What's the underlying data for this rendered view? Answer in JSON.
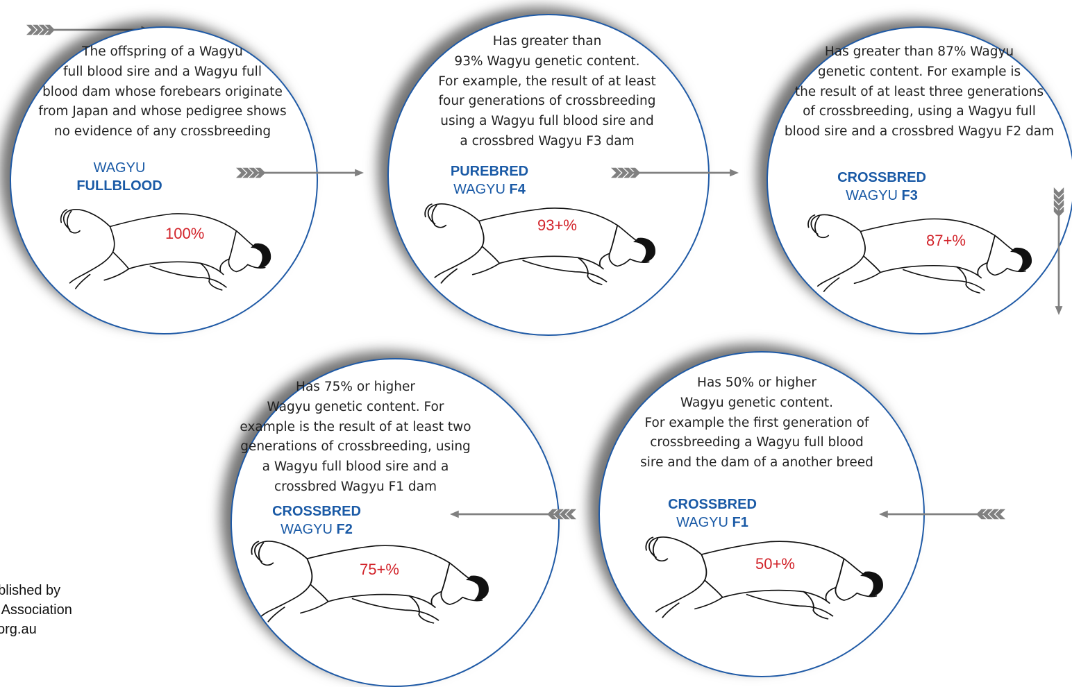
{
  "stages": [
    {
      "id": "fullblood",
      "description": [
        "The offspring of a  Wagyu",
        "full blood sire and a Wagyu full",
        "blood dam whose forebears originate",
        "from Japan and whose pedigree shows",
        "no evidence of any crossbreeding"
      ],
      "label_line1": "WAGYU",
      "label_line2_prefix": "",
      "label_line2_bold": "FULLBLOOD",
      "percent": "100%"
    },
    {
      "id": "purebred-f4",
      "description": [
        "Has greater than",
        "93% Wagyu genetic content.",
        "For example, the result of at least",
        "four generations of crossbreeding",
        "using a Wagyu full blood sire and",
        "a crossbred Wagyu F3 dam"
      ],
      "label_line1": "PUREBRED",
      "label_line2_prefix": "WAGYU ",
      "label_line2_bold": "F4",
      "percent": "93+%"
    },
    {
      "id": "crossbred-f3",
      "description": [
        "Has greater than 87% Wagyu",
        "genetic content. For example is",
        "the result of at least three generations",
        "of crossbreeding, using a Wagyu full",
        "blood sire and a crossbred Wagyu F2 dam"
      ],
      "label_line1": "CROSSBRED",
      "label_line2_prefix": "WAGYU ",
      "label_line2_bold": "F3",
      "percent": "87+%"
    },
    {
      "id": "crossbred-f2",
      "description": [
        "Has 75% or higher",
        "Wagyu genetic content. For",
        "example is the result of at least two",
        "generations of crossbreeding, using",
        "a Wagyu full blood sire and a",
        "crossbred Wagyu F1 dam"
      ],
      "label_line1": "CROSSBRED",
      "label_line2_prefix": "WAGYU ",
      "label_line2_bold": "F2",
      "percent": "75+%"
    },
    {
      "id": "crossbred-f1",
      "description": [
        "Has 50% or higher",
        "Wagyu genetic content.",
        "For example the first generation of",
        "crossbreeding a Wagyu full blood",
        "sire and the dam of a another breed"
      ],
      "label_line1": "CROSSBRED",
      "label_line2_prefix": "WAGYU ",
      "label_line2_bold": "F1",
      "percent": "50+%"
    }
  ],
  "footer": [
    "ublished by",
    "u Association",
    "i.org.au"
  ],
  "colors": {
    "label": "#1a5aa6",
    "percent": "#d2232a",
    "arrow": "#808080",
    "border": "#1f5aa6"
  },
  "icons": {
    "bull": "bull-silhouette-icon",
    "arrow": "feathered-arrow-icon"
  }
}
